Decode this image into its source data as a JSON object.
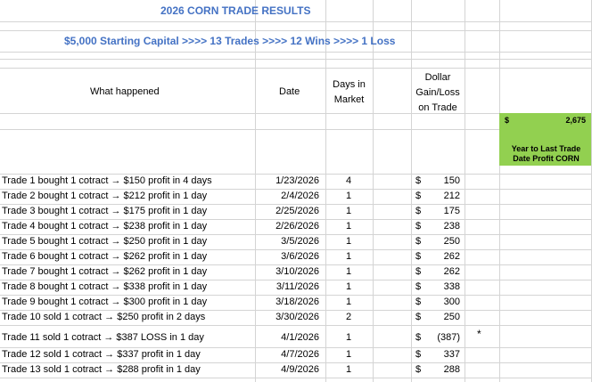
{
  "title": "2026 CORN TRADE RESULTS",
  "subtitle": "$5,000 Starting Capital >>>> 13 Trades >>>> 12 Wins >>>> 1 Loss",
  "headers": {
    "what": "What happened",
    "date": "Date",
    "days_line1": "Days in",
    "days_line2": "Market",
    "gain_line1": "Dollar",
    "gain_line2": "Gain/Loss",
    "gain_line3": "on Trade"
  },
  "summary": {
    "currency": "$",
    "value": "2,675",
    "label_line1": "Year to Last Trade",
    "label_line2": "Date Profit CORN",
    "color": "#92d050"
  },
  "trades": [
    {
      "what": "Trade 1 bought 1 cotract → $150 profit in 4 days",
      "date": "1/23/2026",
      "days": "4",
      "currency": "$",
      "amount": "150",
      "note": ""
    },
    {
      "what": "Trade 2 bought 1 cotract → $212 profit in 1 day",
      "date": "2/4/2026",
      "days": "1",
      "currency": "$",
      "amount": "212",
      "note": ""
    },
    {
      "what": "Trade 3 bought 1 cotract → $175 profit in 1 day",
      "date": "2/25/2026",
      "days": "1",
      "currency": "$",
      "amount": "175",
      "note": ""
    },
    {
      "what": "Trade 4 bought 1 cotract → $238 profit in 1 day",
      "date": "2/26/2026",
      "days": "1",
      "currency": "$",
      "amount": "238",
      "note": ""
    },
    {
      "what": "Trade 5 bought 1 cotract → $250 profit in 1 day",
      "date": "3/5/2026",
      "days": "1",
      "currency": "$",
      "amount": "250",
      "note": ""
    },
    {
      "what": "Trade 6 bought 1 cotract → $262 profit in 1 day",
      "date": "3/6/2026",
      "days": "1",
      "currency": "$",
      "amount": "262",
      "note": ""
    },
    {
      "what": "Trade 7 bought 1 cotract → $262 profit in 1 day",
      "date": "3/10/2026",
      "days": "1",
      "currency": "$",
      "amount": "262",
      "note": ""
    },
    {
      "what": "Trade 8 bought 1 cotract → $338 profit in 1 day",
      "date": "3/11/2026",
      "days": "1",
      "currency": "$",
      "amount": "338",
      "note": ""
    },
    {
      "what": "Trade 9 bought 1 cotract → $300 profit in 1 day",
      "date": "3/18/2026",
      "days": "1",
      "currency": "$",
      "amount": "300",
      "note": ""
    },
    {
      "what": "Trade 10 sold 1 cotract → $250 profit in 2 days",
      "date": "3/30/2026",
      "days": "2",
      "currency": "$",
      "amount": "250",
      "note": ""
    },
    {
      "what": "Trade 11 sold 1 cotract → $387 LOSS in 1 day",
      "date": "4/1/2026",
      "days": "1",
      "currency": "$",
      "amount": "(387)",
      "note": "*"
    },
    {
      "what": "Trade 12 sold 1 cotract → $337 profit in 1 day",
      "date": "4/7/2026",
      "days": "1",
      "currency": "$",
      "amount": "337",
      "note": ""
    },
    {
      "what": "Trade 13 sold 1 cotract → $288 profit in 1 day",
      "date": "4/9/2026",
      "days": "1",
      "currency": "$",
      "amount": "288",
      "note": ""
    }
  ]
}
